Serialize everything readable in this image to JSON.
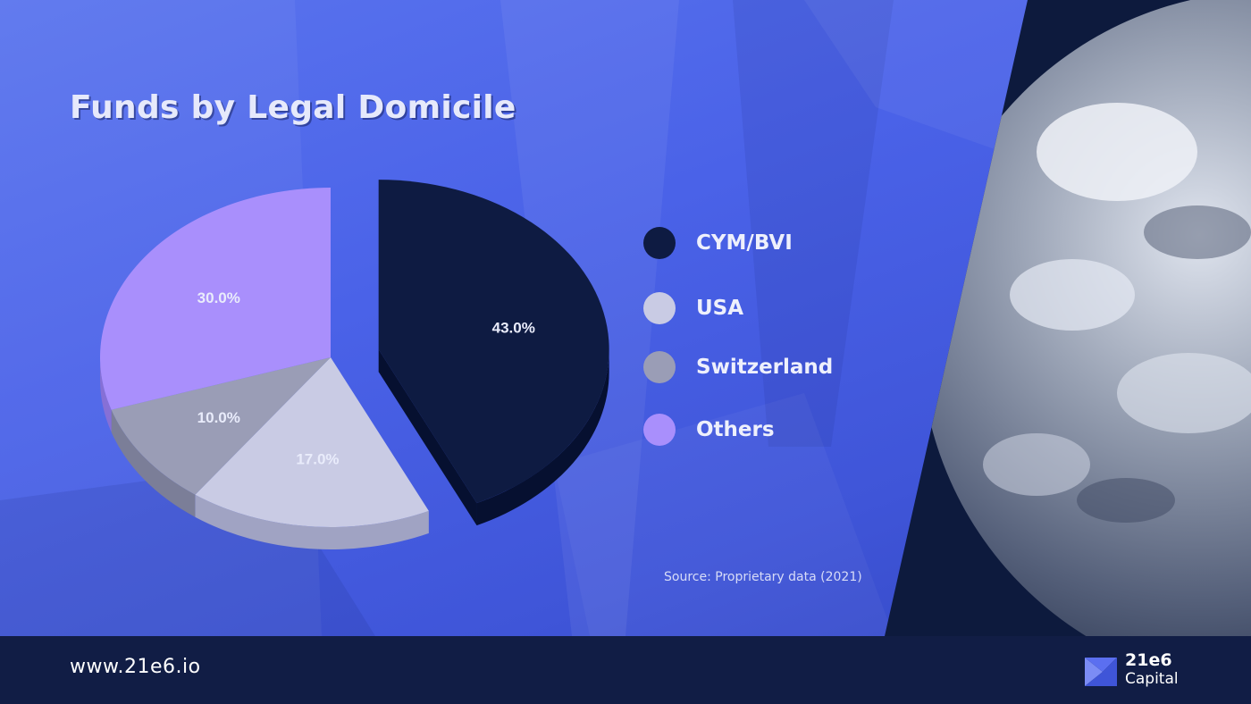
{
  "title": "Funds by Legal Domicile",
  "source": "Source: Proprietary data (2021)",
  "footer": {
    "url": "www.21e6.io",
    "logo_name": "21e6",
    "logo_sub": "Capital"
  },
  "colors": {
    "background": "#4b63e8",
    "footer": "#111d45",
    "space": "#0d1a3d"
  },
  "chart_data": {
    "type": "pie",
    "style": "3d-exploded",
    "title": "Funds by Legal Domicile",
    "legend_position": "right",
    "slices": [
      {
        "name": "CYM/BVI",
        "value": 43.0,
        "label": "43.0%",
        "color": "#0e1b42",
        "side_color": "#061030",
        "exploded": true
      },
      {
        "name": "USA",
        "value": 17.0,
        "label": "17.0%",
        "color": "#c9cbe4",
        "side_color": "#a0a3c3",
        "exploded": false
      },
      {
        "name": "Switzerland",
        "value": 10.0,
        "label": "10.0%",
        "color": "#9a9db6",
        "side_color": "#7b7e98",
        "exploded": false
      },
      {
        "name": "Others",
        "value": 30.0,
        "label": "30.0%",
        "color": "#a98ffc",
        "side_color": "#8670d6",
        "exploded": false
      }
    ]
  }
}
